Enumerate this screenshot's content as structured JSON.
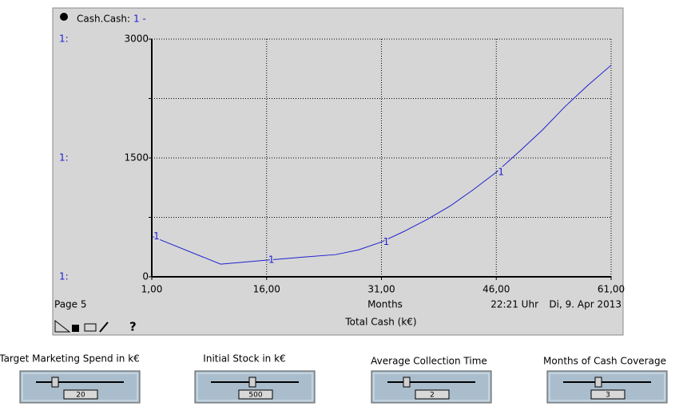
{
  "chart_data": {
    "type": "line",
    "legend_title": "Cash.Cash:",
    "title": "Total Cash (k€)",
    "xlabel": "Months",
    "page_label": "Page 5",
    "time": "22:21 Uhr",
    "date": "Di, 9. Apr 2013",
    "help": "?",
    "y_axis_series_labels": [
      "1:",
      "1:",
      "1:"
    ],
    "x": [
      1,
      10,
      16,
      21,
      25,
      28,
      31,
      34,
      37,
      40,
      43,
      46,
      49,
      52,
      55,
      58,
      61
    ],
    "series": [
      {
        "name": "1",
        "legend_label": "1 -",
        "color": "#2020d0",
        "values": [
          510,
          160,
          210,
          250,
          280,
          340,
          440,
          575,
          725,
          895,
          1100,
          1320,
          1580,
          1850,
          2150,
          2420,
          2670
        ]
      }
    ],
    "xlim": [
      1,
      61
    ],
    "xticks": [
      {
        "value": 1,
        "label": "1,00"
      },
      {
        "value": 16,
        "label": "16,00"
      },
      {
        "value": 31,
        "label": "31,00"
      },
      {
        "value": 46,
        "label": "46,00"
      },
      {
        "value": 61,
        "label": "61,00"
      }
    ],
    "ylim": [
      0,
      3000
    ],
    "yticks": [
      0,
      1500,
      3000
    ],
    "yminor": [
      750,
      2250
    ],
    "grid": true
  },
  "controls": [
    {
      "label": "Target Marketing Spend in k€",
      "value": 20
    },
    {
      "label": "Initial Stock in k€",
      "value": 500
    },
    {
      "label": "Average Collection Time",
      "value": 2
    },
    {
      "label": "Months of Cash Coverage",
      "value": 3
    }
  ]
}
